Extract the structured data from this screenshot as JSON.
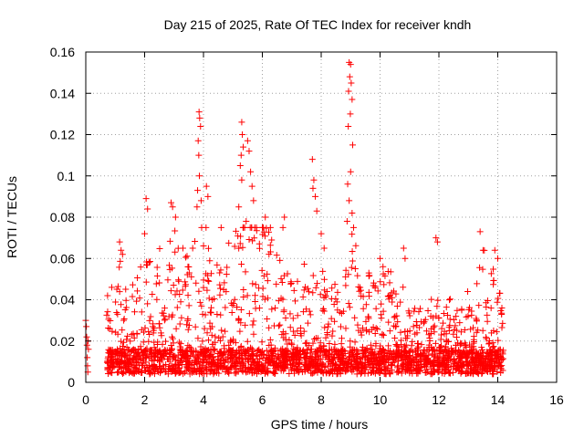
{
  "chart_data": {
    "type": "scatter",
    "title": "Day 215 of 2025, Rate Of TEC Index for receiver kndh",
    "xlabel": "GPS time / hours",
    "ylabel": "ROTI / TECUs",
    "xlim": [
      0,
      16
    ],
    "ylim": [
      0,
      0.16
    ],
    "xticks": [
      0,
      2,
      4,
      6,
      8,
      10,
      12,
      14,
      16
    ],
    "yticks": [
      0,
      0.02,
      0.04,
      0.06,
      0.08,
      0.1,
      0.12,
      0.14,
      0.16
    ],
    "xtick_labels": [
      "0",
      "2",
      "4",
      "6",
      "8",
      "10",
      "12",
      "14",
      "16"
    ],
    "ytick_labels": [
      "0",
      "0.02",
      "0.04",
      "0.06",
      "0.08",
      "0.1",
      "0.12",
      "0.14",
      "0.16"
    ],
    "grid": true,
    "marker": "+",
    "marker_color": "#ff0000",
    "series": [
      {
        "name": "ROTI",
        "points": [
          [
            0.0,
            0.03
          ],
          [
            0.02,
            0.027
          ],
          [
            0.03,
            0.022
          ],
          [
            0.04,
            0.018
          ],
          [
            0.05,
            0.012
          ],
          [
            0.06,
            0.008
          ],
          [
            0.07,
            0.005
          ],
          [
            0.08,
            0.02
          ],
          [
            0.09,
            0.016
          ],
          [
            1.15,
            0.068
          ],
          [
            1.2,
            0.064
          ],
          [
            1.25,
            0.062
          ],
          [
            2.05,
            0.089
          ],
          [
            2.1,
            0.084
          ],
          [
            2.0,
            0.072
          ],
          [
            2.15,
            0.058
          ],
          [
            2.9,
            0.087
          ],
          [
            2.95,
            0.085
          ],
          [
            3.05,
            0.08
          ],
          [
            3.3,
            0.065
          ],
          [
            3.85,
            0.131
          ],
          [
            3.87,
            0.128
          ],
          [
            3.9,
            0.124
          ],
          [
            3.82,
            0.117
          ],
          [
            3.84,
            0.11
          ],
          [
            3.86,
            0.1
          ],
          [
            3.8,
            0.093
          ],
          [
            3.78,
            0.085
          ],
          [
            3.92,
            0.088
          ],
          [
            4.1,
            0.095
          ],
          [
            4.15,
            0.09
          ],
          [
            4.6,
            0.075
          ],
          [
            5.3,
            0.126
          ],
          [
            5.32,
            0.12
          ],
          [
            5.35,
            0.114
          ],
          [
            5.28,
            0.11
          ],
          [
            5.5,
            0.117
          ],
          [
            5.55,
            0.112
          ],
          [
            5.25,
            0.105
          ],
          [
            5.3,
            0.098
          ],
          [
            5.6,
            0.102
          ],
          [
            5.65,
            0.095
          ],
          [
            5.7,
            0.088
          ],
          [
            5.2,
            0.085
          ],
          [
            5.45,
            0.078
          ],
          [
            6.1,
            0.08
          ],
          [
            6.0,
            0.075
          ],
          [
            6.75,
            0.08
          ],
          [
            6.7,
            0.075
          ],
          [
            7.7,
            0.108
          ],
          [
            7.75,
            0.098
          ],
          [
            7.72,
            0.094
          ],
          [
            7.8,
            0.09
          ],
          [
            7.85,
            0.083
          ],
          [
            8.0,
            0.072
          ],
          [
            8.1,
            0.065
          ],
          [
            8.95,
            0.155
          ],
          [
            9.0,
            0.154
          ],
          [
            8.97,
            0.148
          ],
          [
            9.02,
            0.145
          ],
          [
            8.93,
            0.141
          ],
          [
            9.05,
            0.137
          ],
          [
            8.99,
            0.13
          ],
          [
            8.92,
            0.124
          ],
          [
            9.07,
            0.115
          ],
          [
            9.0,
            0.102
          ],
          [
            8.9,
            0.096
          ],
          [
            8.95,
            0.088
          ],
          [
            9.05,
            0.082
          ],
          [
            8.88,
            0.078
          ],
          [
            9.1,
            0.075
          ],
          [
            10.0,
            0.06
          ],
          [
            10.1,
            0.056
          ],
          [
            10.8,
            0.065
          ],
          [
            10.85,
            0.06
          ],
          [
            11.9,
            0.07
          ],
          [
            11.95,
            0.068
          ],
          [
            13.4,
            0.073
          ],
          [
            13.5,
            0.064
          ],
          [
            13.9,
            0.064
          ],
          [
            14.0,
            0.06
          ]
        ]
      }
    ]
  }
}
